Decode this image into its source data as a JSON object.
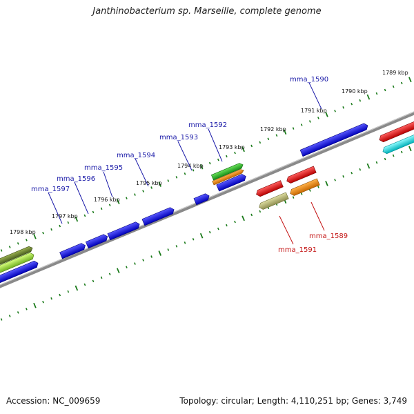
{
  "title": "Janthinobacterium sp. Marseille, complete genome",
  "accession": "Accession: NC_009659",
  "summary": "Topology: circular; Length: 4,110,251 bp; Genes: 3,749",
  "kbp_labels": [
    "1789 kbp",
    "1790 kbp",
    "1791 kbp",
    "1792 kbp",
    "1793 kbp",
    "1794 kbp",
    "1795 kbp",
    "1796 kbp",
    "1797 kbp",
    "1798 kbp"
  ],
  "gene_labels_top": [
    "mma_1590",
    "mma_1592",
    "mma_1593",
    "mma_1594",
    "mma_1595",
    "mma_1596",
    "mma_1597"
  ],
  "gene_labels_bottom": [
    "mma_1589",
    "mma_1591"
  ],
  "colors": {
    "backbone": "#808080",
    "tick_green": "#1a7a1a",
    "gene_blue": "#1010e0",
    "gene_red": "#e81010",
    "gene_orange": "#f08c00",
    "gene_green": "#33bb22",
    "gene_olive": "#c0bf7a",
    "gene_cyan": "#00e0e8",
    "gene_lightgreen": "#a8e040",
    "label_blue": "#1a1aa8",
    "label_red": "#c41414"
  }
}
